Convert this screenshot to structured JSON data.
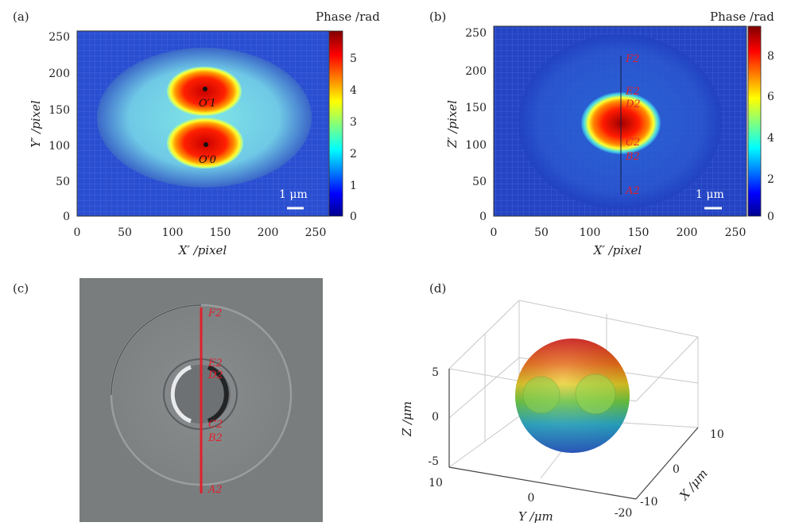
{
  "panels": {
    "a": {
      "tag": "(a)",
      "colorbar_title": "Phase /rad",
      "colorbar_ticks": [
        "0",
        "1",
        "2",
        "3",
        "4",
        "5"
      ],
      "x_ticks": [
        "0",
        "50",
        "100",
        "150",
        "200",
        "250"
      ],
      "y_ticks": [
        "0",
        "50",
        "100",
        "150",
        "200",
        "250"
      ],
      "xlabel": "X′ /pixel",
      "ylabel": "Y′ /pixel",
      "scale_bar": "1 μm",
      "points": [
        "O′1",
        "O′0"
      ]
    },
    "b": {
      "tag": "(b)",
      "colorbar_title": "Phase /rad",
      "colorbar_ticks": [
        "0",
        "2",
        "4",
        "6",
        "8"
      ],
      "x_ticks": [
        "0",
        "50",
        "100",
        "150",
        "200",
        "250"
      ],
      "y_ticks": [
        "0",
        "50",
        "100",
        "150",
        "200",
        "250"
      ],
      "xlabel": "X′ /pixel",
      "ylabel": "Z′ /pixel",
      "scale_bar": "1 μm",
      "points": [
        "F2",
        "E2",
        "D2",
        "C2",
        "B2",
        "A2"
      ]
    },
    "c": {
      "tag": "(c)",
      "points": [
        "F2",
        "E2",
        "D2",
        "C2",
        "B2",
        "A2"
      ]
    },
    "d": {
      "tag": "(d)",
      "z_ticks": [
        "5",
        "0",
        "-5"
      ],
      "y_ticks": [
        "10",
        "0",
        "-20"
      ],
      "x_ticks": [
        "10",
        "0",
        "-10"
      ],
      "zlabel": "Z /μm",
      "ylabel": "Y /μm",
      "xlabel": "X /μm"
    }
  }
}
